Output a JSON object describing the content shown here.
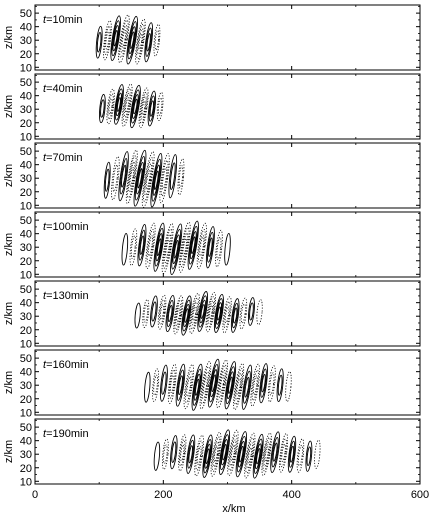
{
  "chart_data": {
    "type": "contour",
    "xlabel": "x/km",
    "ylabel": "z/km",
    "xlim": [
      0,
      600
    ],
    "ylim": [
      8,
      56
    ],
    "xticks": [
      0,
      200,
      400,
      600
    ],
    "yticks": [
      10,
      20,
      30,
      40,
      50
    ],
    "line_styles": {
      "positive": "solid",
      "negative": "dotted"
    },
    "panels": [
      {
        "label_var": "t",
        "label_rest": "=10min",
        "center_x": 145,
        "width_x": 90,
        "bottom_z": 10,
        "top_z": 46,
        "peak_z": 30
      },
      {
        "label_var": "t",
        "label_rest": "=40min",
        "center_x": 150,
        "width_x": 90,
        "bottom_z": 14,
        "top_z": 46,
        "peak_z": 32
      },
      {
        "label_var": "t",
        "label_rest": "=70min",
        "center_x": 170,
        "width_x": 115,
        "bottom_z": 10,
        "top_z": 52,
        "peak_z": 30
      },
      {
        "label_var": "t",
        "label_rest": "=100min",
        "center_x": 220,
        "width_x": 160,
        "bottom_z": 12,
        "top_z": 50,
        "peak_z": 30
      },
      {
        "label_var": "t",
        "label_rest": "=130min",
        "center_x": 255,
        "width_x": 190,
        "bottom_z": 18,
        "top_z": 48,
        "peak_z": 32
      },
      {
        "label_var": "t",
        "label_rest": "=160min",
        "center_x": 285,
        "width_x": 220,
        "bottom_z": 12,
        "top_z": 48,
        "peak_z": 30
      },
      {
        "label_var": "t",
        "label_rest": "=190min",
        "center_x": 315,
        "width_x": 250,
        "bottom_z": 12,
        "top_z": 46,
        "peak_z": 30
      }
    ]
  }
}
